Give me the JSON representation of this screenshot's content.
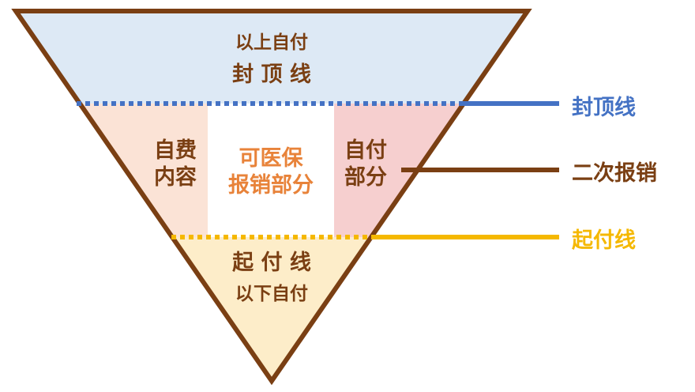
{
  "diagram": {
    "top_zone": {
      "line1": "以上自付",
      "line2": "封 顶 线"
    },
    "left_zone": {
      "line1": "自费",
      "line2": "内容"
    },
    "center_zone": {
      "line1": "可医保",
      "line2": "报销部分"
    },
    "right_zone": {
      "line1": "自付",
      "line2": "部分"
    },
    "bottom_zone": {
      "line1": "起 付 线",
      "line2": "以下自付"
    }
  },
  "legend": {
    "cap_line": "封顶线",
    "secondary": "二次报销",
    "deductible_line": "起付线"
  },
  "colors": {
    "outline": "#7a3f13",
    "top_fill": "#dde9f5",
    "left_fill": "#fbe3d6",
    "center_fill": "#ffffff",
    "right_fill": "#f6cfcf",
    "bottom_fill": "#fdedc9",
    "cap_line": "#4472c4",
    "secondary_line": "#7a3f13",
    "deductible_line": "#f5b800",
    "center_text": "#e8833a"
  }
}
